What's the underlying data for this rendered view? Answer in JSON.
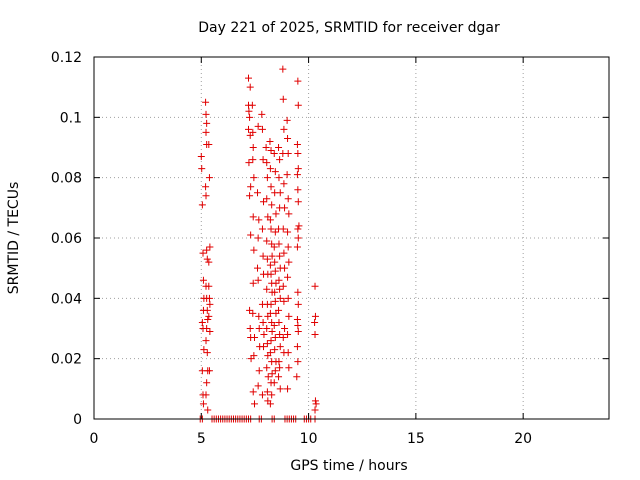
{
  "chart_data": {
    "type": "scatter",
    "title": "Day 221 of 2025, SRMTID for receiver dgar",
    "xlabel": "GPS time / hours",
    "ylabel": "SRMTID / TECUs",
    "xlim": [
      0,
      24
    ],
    "ylim": [
      0,
      0.12
    ],
    "xticks": [
      0,
      5,
      10,
      15,
      20
    ],
    "yticks": [
      0,
      0.02,
      0.04,
      0.06,
      0.08,
      0.1,
      0.12
    ],
    "xtick_labels": [
      "0",
      "5",
      "10",
      "15",
      "20"
    ],
    "ytick_labels": [
      "0",
      "0.02",
      "0.04",
      "0.06",
      "0.08",
      "0.1",
      "0.12"
    ],
    "grid": true,
    "marker": "+",
    "color": "#e00000",
    "series": [
      {
        "name": "SRMTID",
        "points": [
          [
            5.0,
            0.087
          ],
          [
            5.02,
            0.083
          ],
          [
            5.05,
            0.071
          ],
          [
            5.08,
            0.055
          ],
          [
            5.1,
            0.046
          ],
          [
            5.12,
            0.04
          ],
          [
            5.1,
            0.036
          ],
          [
            5.05,
            0.032
          ],
          [
            5.08,
            0.03
          ],
          [
            5.12,
            0.023
          ],
          [
            5.05,
            0.016
          ],
          [
            5.08,
            0.008
          ],
          [
            5.1,
            0.005
          ],
          [
            5.2,
            0.105
          ],
          [
            5.22,
            0.101
          ],
          [
            5.25,
            0.098
          ],
          [
            5.22,
            0.095
          ],
          [
            5.25,
            0.091
          ],
          [
            5.2,
            0.077
          ],
          [
            5.22,
            0.074
          ],
          [
            5.25,
            0.056
          ],
          [
            5.28,
            0.053
          ],
          [
            5.22,
            0.044
          ],
          [
            5.25,
            0.04
          ],
          [
            5.28,
            0.036
          ],
          [
            5.3,
            0.033
          ],
          [
            5.25,
            0.03
          ],
          [
            5.22,
            0.026
          ],
          [
            5.28,
            0.022
          ],
          [
            5.3,
            0.016
          ],
          [
            5.25,
            0.012
          ],
          [
            5.22,
            0.008
          ],
          [
            5.3,
            0.003
          ],
          [
            5.35,
            0.091
          ],
          [
            5.38,
            0.08
          ],
          [
            5.35,
            0.052
          ],
          [
            5.4,
            0.057
          ],
          [
            5.38,
            0.04
          ],
          [
            5.35,
            0.034
          ],
          [
            5.4,
            0.029
          ],
          [
            5.38,
            0.016
          ],
          [
            5.35,
            0.044
          ],
          [
            5.4,
            0.038
          ],
          [
            7.2,
            0.113
          ],
          [
            7.28,
            0.11
          ],
          [
            7.2,
            0.104
          ],
          [
            7.22,
            0.102
          ],
          [
            7.25,
            0.1
          ],
          [
            7.2,
            0.096
          ],
          [
            7.28,
            0.094
          ],
          [
            7.22,
            0.085
          ],
          [
            7.3,
            0.077
          ],
          [
            7.25,
            0.074
          ],
          [
            7.3,
            0.061
          ],
          [
            7.25,
            0.036
          ],
          [
            7.28,
            0.03
          ],
          [
            7.3,
            0.027
          ],
          [
            7.32,
            0.02
          ],
          [
            7.38,
            0.104
          ],
          [
            7.4,
            0.095
          ],
          [
            7.42,
            0.09
          ],
          [
            7.4,
            0.086
          ],
          [
            7.45,
            0.08
          ],
          [
            7.42,
            0.067
          ],
          [
            7.45,
            0.056
          ],
          [
            7.42,
            0.045
          ],
          [
            7.4,
            0.035
          ],
          [
            7.48,
            0.027
          ],
          [
            7.45,
            0.021
          ],
          [
            7.42,
            0.009
          ],
          [
            7.48,
            0.005
          ],
          [
            7.65,
            0.097
          ],
          [
            7.62,
            0.075
          ],
          [
            7.68,
            0.066
          ],
          [
            7.65,
            0.06
          ],
          [
            7.62,
            0.05
          ],
          [
            7.65,
            0.046
          ],
          [
            7.68,
            0.034
          ],
          [
            7.7,
            0.03
          ],
          [
            7.72,
            0.024
          ],
          [
            7.7,
            0.016
          ],
          [
            7.65,
            0.011
          ],
          [
            7.82,
            0.101
          ],
          [
            7.85,
            0.096
          ],
          [
            7.88,
            0.086
          ],
          [
            7.9,
            0.072
          ],
          [
            7.85,
            0.063
          ],
          [
            7.88,
            0.054
          ],
          [
            7.9,
            0.048
          ],
          [
            7.85,
            0.038
          ],
          [
            7.88,
            0.032
          ],
          [
            7.92,
            0.028
          ],
          [
            7.9,
            0.024
          ],
          [
            7.85,
            0.008
          ],
          [
            8.02,
            0.09
          ],
          [
            8.05,
            0.085
          ],
          [
            8.08,
            0.08
          ],
          [
            8.05,
            0.073
          ],
          [
            8.1,
            0.067
          ],
          [
            8.05,
            0.059
          ],
          [
            8.08,
            0.053
          ],
          [
            8.1,
            0.048
          ],
          [
            8.05,
            0.043
          ],
          [
            8.08,
            0.038
          ],
          [
            8.1,
            0.034
          ],
          [
            8.05,
            0.03
          ],
          [
            8.08,
            0.025
          ],
          [
            8.1,
            0.021
          ],
          [
            8.05,
            0.017
          ],
          [
            8.12,
            0.014
          ],
          [
            8.08,
            0.009
          ],
          [
            8.1,
            0.006
          ],
          [
            8.2,
            0.092
          ],
          [
            8.25,
            0.089
          ],
          [
            8.22,
            0.083
          ],
          [
            8.25,
            0.077
          ],
          [
            8.28,
            0.071
          ],
          [
            8.22,
            0.066
          ],
          [
            8.25,
            0.063
          ],
          [
            8.28,
            0.058
          ],
          [
            8.3,
            0.054
          ],
          [
            8.22,
            0.051
          ],
          [
            8.25,
            0.048
          ],
          [
            8.28,
            0.045
          ],
          [
            8.3,
            0.042
          ],
          [
            8.25,
            0.038
          ],
          [
            8.22,
            0.035
          ],
          [
            8.28,
            0.032
          ],
          [
            8.3,
            0.029
          ],
          [
            8.25,
            0.026
          ],
          [
            8.22,
            0.022
          ],
          [
            8.28,
            0.019
          ],
          [
            8.3,
            0.015
          ],
          [
            8.25,
            0.012
          ],
          [
            8.28,
            0.008
          ],
          [
            8.22,
            0.005
          ],
          [
            8.4,
            0.088
          ],
          [
            8.45,
            0.082
          ],
          [
            8.42,
            0.075
          ],
          [
            8.48,
            0.068
          ],
          [
            8.45,
            0.062
          ],
          [
            8.4,
            0.057
          ],
          [
            8.42,
            0.052
          ],
          [
            8.45,
            0.049
          ],
          [
            8.48,
            0.045
          ],
          [
            8.42,
            0.042
          ],
          [
            8.45,
            0.039
          ],
          [
            8.48,
            0.035
          ],
          [
            8.4,
            0.031
          ],
          [
            8.45,
            0.027
          ],
          [
            8.42,
            0.023
          ],
          [
            8.48,
            0.019
          ],
          [
            8.45,
            0.016
          ],
          [
            8.4,
            0.012
          ],
          [
            8.6,
            0.09
          ],
          [
            8.65,
            0.086
          ],
          [
            8.62,
            0.08
          ],
          [
            8.68,
            0.075
          ],
          [
            8.65,
            0.07
          ],
          [
            8.6,
            0.063
          ],
          [
            8.62,
            0.058
          ],
          [
            8.65,
            0.054
          ],
          [
            8.68,
            0.05
          ],
          [
            8.62,
            0.046
          ],
          [
            8.65,
            0.043
          ],
          [
            8.68,
            0.04
          ],
          [
            8.6,
            0.036
          ],
          [
            8.62,
            0.032
          ],
          [
            8.65,
            0.028
          ],
          [
            8.68,
            0.024
          ],
          [
            8.62,
            0.019
          ],
          [
            8.65,
            0.017
          ],
          [
            8.6,
            0.014
          ],
          [
            8.68,
            0.01
          ],
          [
            8.8,
            0.116
          ],
          [
            8.82,
            0.106
          ],
          [
            8.85,
            0.096
          ],
          [
            8.8,
            0.088
          ],
          [
            8.85,
            0.078
          ],
          [
            8.88,
            0.07
          ],
          [
            8.82,
            0.063
          ],
          [
            8.85,
            0.055
          ],
          [
            8.88,
            0.05
          ],
          [
            8.82,
            0.044
          ],
          [
            8.85,
            0.039
          ],
          [
            8.88,
            0.03
          ],
          [
            8.82,
            0.027
          ],
          [
            8.85,
            0.022
          ],
          [
            9.0,
            0.099
          ],
          [
            9.02,
            0.093
          ],
          [
            9.05,
            0.088
          ],
          [
            9.0,
            0.081
          ],
          [
            9.05,
            0.073
          ],
          [
            9.08,
            0.068
          ],
          [
            9.02,
            0.062
          ],
          [
            9.05,
            0.057
          ],
          [
            9.08,
            0.052
          ],
          [
            9.02,
            0.047
          ],
          [
            9.05,
            0.04
          ],
          [
            9.08,
            0.034
          ],
          [
            9.02,
            0.028
          ],
          [
            9.05,
            0.022
          ],
          [
            9.08,
            0.017
          ],
          [
            9.02,
            0.01
          ],
          [
            9.5,
            0.112
          ],
          [
            9.52,
            0.104
          ],
          [
            9.48,
            0.091
          ],
          [
            9.5,
            0.088
          ],
          [
            9.52,
            0.083
          ],
          [
            9.48,
            0.081
          ],
          [
            9.5,
            0.076
          ],
          [
            9.52,
            0.072
          ],
          [
            9.55,
            0.064
          ],
          [
            9.5,
            0.063
          ],
          [
            9.52,
            0.06
          ],
          [
            9.48,
            0.057
          ],
          [
            9.5,
            0.042
          ],
          [
            9.52,
            0.038
          ],
          [
            9.48,
            0.033
          ],
          [
            9.5,
            0.031
          ],
          [
            9.52,
            0.029
          ],
          [
            9.48,
            0.024
          ],
          [
            9.5,
            0.019
          ],
          [
            9.45,
            0.014
          ],
          [
            10.3,
            0.044
          ],
          [
            10.32,
            0.034
          ],
          [
            10.28,
            0.032
          ],
          [
            10.3,
            0.028
          ],
          [
            10.32,
            0.006
          ],
          [
            10.35,
            0.005
          ],
          [
            10.3,
            0.003
          ],
          [
            4.95,
            0.0
          ],
          [
            5.05,
            0.0
          ],
          [
            5.5,
            0.0
          ],
          [
            5.6,
            0.0
          ],
          [
            5.7,
            0.0
          ],
          [
            5.8,
            0.0
          ],
          [
            5.9,
            0.0
          ],
          [
            6.0,
            0.0
          ],
          [
            6.1,
            0.0
          ],
          [
            6.2,
            0.0
          ],
          [
            6.3,
            0.0
          ],
          [
            6.4,
            0.0
          ],
          [
            6.5,
            0.0
          ],
          [
            6.6,
            0.0
          ],
          [
            6.7,
            0.0
          ],
          [
            6.8,
            0.0
          ],
          [
            6.9,
            0.0
          ],
          [
            7.0,
            0.0
          ],
          [
            7.1,
            0.0
          ],
          [
            7.2,
            0.0
          ],
          [
            7.3,
            0.0
          ],
          [
            7.7,
            0.0
          ],
          [
            7.8,
            0.0
          ],
          [
            8.3,
            0.0
          ],
          [
            8.4,
            0.0
          ],
          [
            8.9,
            0.0
          ],
          [
            9.0,
            0.0
          ],
          [
            9.1,
            0.0
          ],
          [
            9.2,
            0.0
          ],
          [
            9.3,
            0.0
          ],
          [
            9.4,
            0.0
          ],
          [
            9.8,
            0.0
          ],
          [
            9.9,
            0.0
          ],
          [
            10.0,
            0.0
          ],
          [
            10.1,
            0.0
          ],
          [
            10.3,
            0.0
          ]
        ]
      }
    ]
  }
}
